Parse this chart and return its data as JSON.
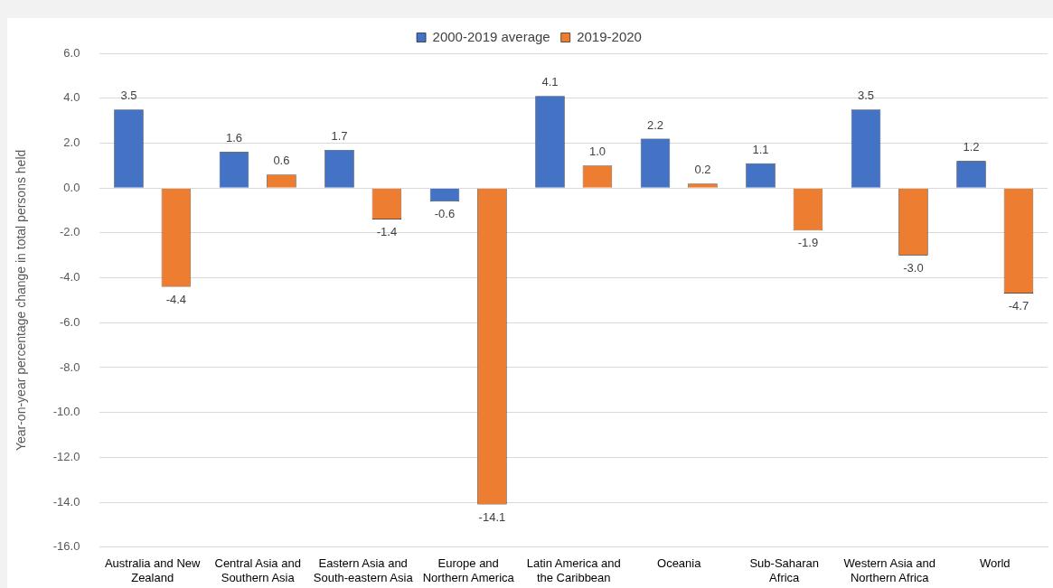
{
  "chart_data": {
    "type": "bar",
    "ylabel": "Year-on-year percentage change in total persons held",
    "categories": [
      "Australia and New Zealand",
      "Central Asia and Southern Asia",
      "Eastern Asia and South-eastern Asia",
      "Europe and Northern America",
      "Latin America and the Caribbean",
      "Oceania",
      "Sub-Saharan Africa",
      "Western Asia and Northern Africa",
      "World"
    ],
    "series": [
      {
        "name": "2000-2019 average",
        "color": "#4472c4",
        "values": [
          3.5,
          1.6,
          1.7,
          -0.6,
          4.1,
          2.2,
          1.1,
          3.5,
          1.2
        ],
        "value_labels": [
          "3.5",
          "1.6",
          "1.7",
          "-0.6",
          "4.1",
          "2.2",
          "1.1",
          "3.5",
          "1.2"
        ]
      },
      {
        "name": "2019-2020",
        "color": "#ed7d31",
        "values": [
          -4.4,
          0.6,
          -1.4,
          -14.1,
          1.0,
          0.2,
          -1.9,
          -3.0,
          -4.7
        ],
        "value_labels": [
          "-4.4",
          "0.6",
          "-1.4",
          "-14.1",
          "1.0",
          "0.2",
          "-1.9",
          "-3.0",
          "-4.7"
        ]
      }
    ],
    "ylim": [
      -16,
      6
    ],
    "yticks": [
      {
        "value": -16,
        "label": "-16.0"
      },
      {
        "value": -14,
        "label": "-14.0"
      },
      {
        "value": -12,
        "label": "-12.0"
      },
      {
        "value": -10,
        "label": "-10.0"
      },
      {
        "value": -8,
        "label": "-8.0"
      },
      {
        "value": -6,
        "label": "-6.0"
      },
      {
        "value": -4,
        "label": "-4.0"
      },
      {
        "value": -2,
        "label": "-2.0"
      },
      {
        "value": 0,
        "label": "0.0"
      },
      {
        "value": 2,
        "label": "2.0"
      },
      {
        "value": 4,
        "label": "4.0"
      },
      {
        "value": 6,
        "label": "6.0"
      }
    ],
    "grid": "y",
    "legend": "top"
  }
}
